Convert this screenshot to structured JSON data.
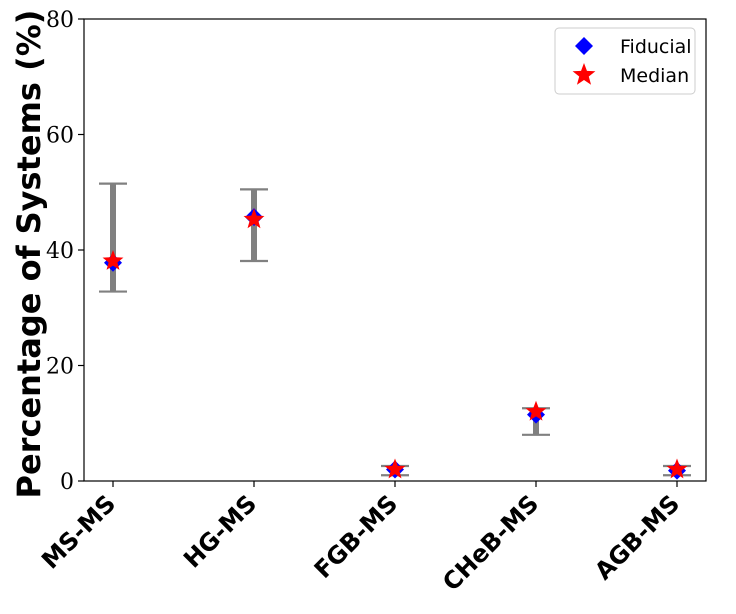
{
  "chart_data": {
    "type": "scatter",
    "title": "",
    "xlabel": "",
    "ylabel": "Percentage of Systems (%)",
    "categories": [
      "MS-MS",
      "HG-MS",
      "FGB-MS",
      "CHeB-MS",
      "AGB-MS"
    ],
    "ylim": [
      0,
      80
    ],
    "yticks": [
      0,
      20,
      40,
      60,
      80
    ],
    "grid": false,
    "legend_position": "top-right",
    "errorbars": {
      "color": "#808080",
      "low": [
        32.8,
        38.1,
        1.0,
        8.0,
        1.0
      ],
      "high": [
        51.5,
        50.5,
        2.6,
        12.6,
        2.6
      ]
    },
    "series": [
      {
        "name": "Fiducial",
        "marker": "diamond",
        "color": "#0000ff",
        "values": [
          37.8,
          45.7,
          2.0,
          11.5,
          1.8
        ]
      },
      {
        "name": "Median",
        "marker": "star",
        "color": "#ff0000",
        "values": [
          38.1,
          45.3,
          2.0,
          12.0,
          2.0
        ]
      }
    ]
  }
}
